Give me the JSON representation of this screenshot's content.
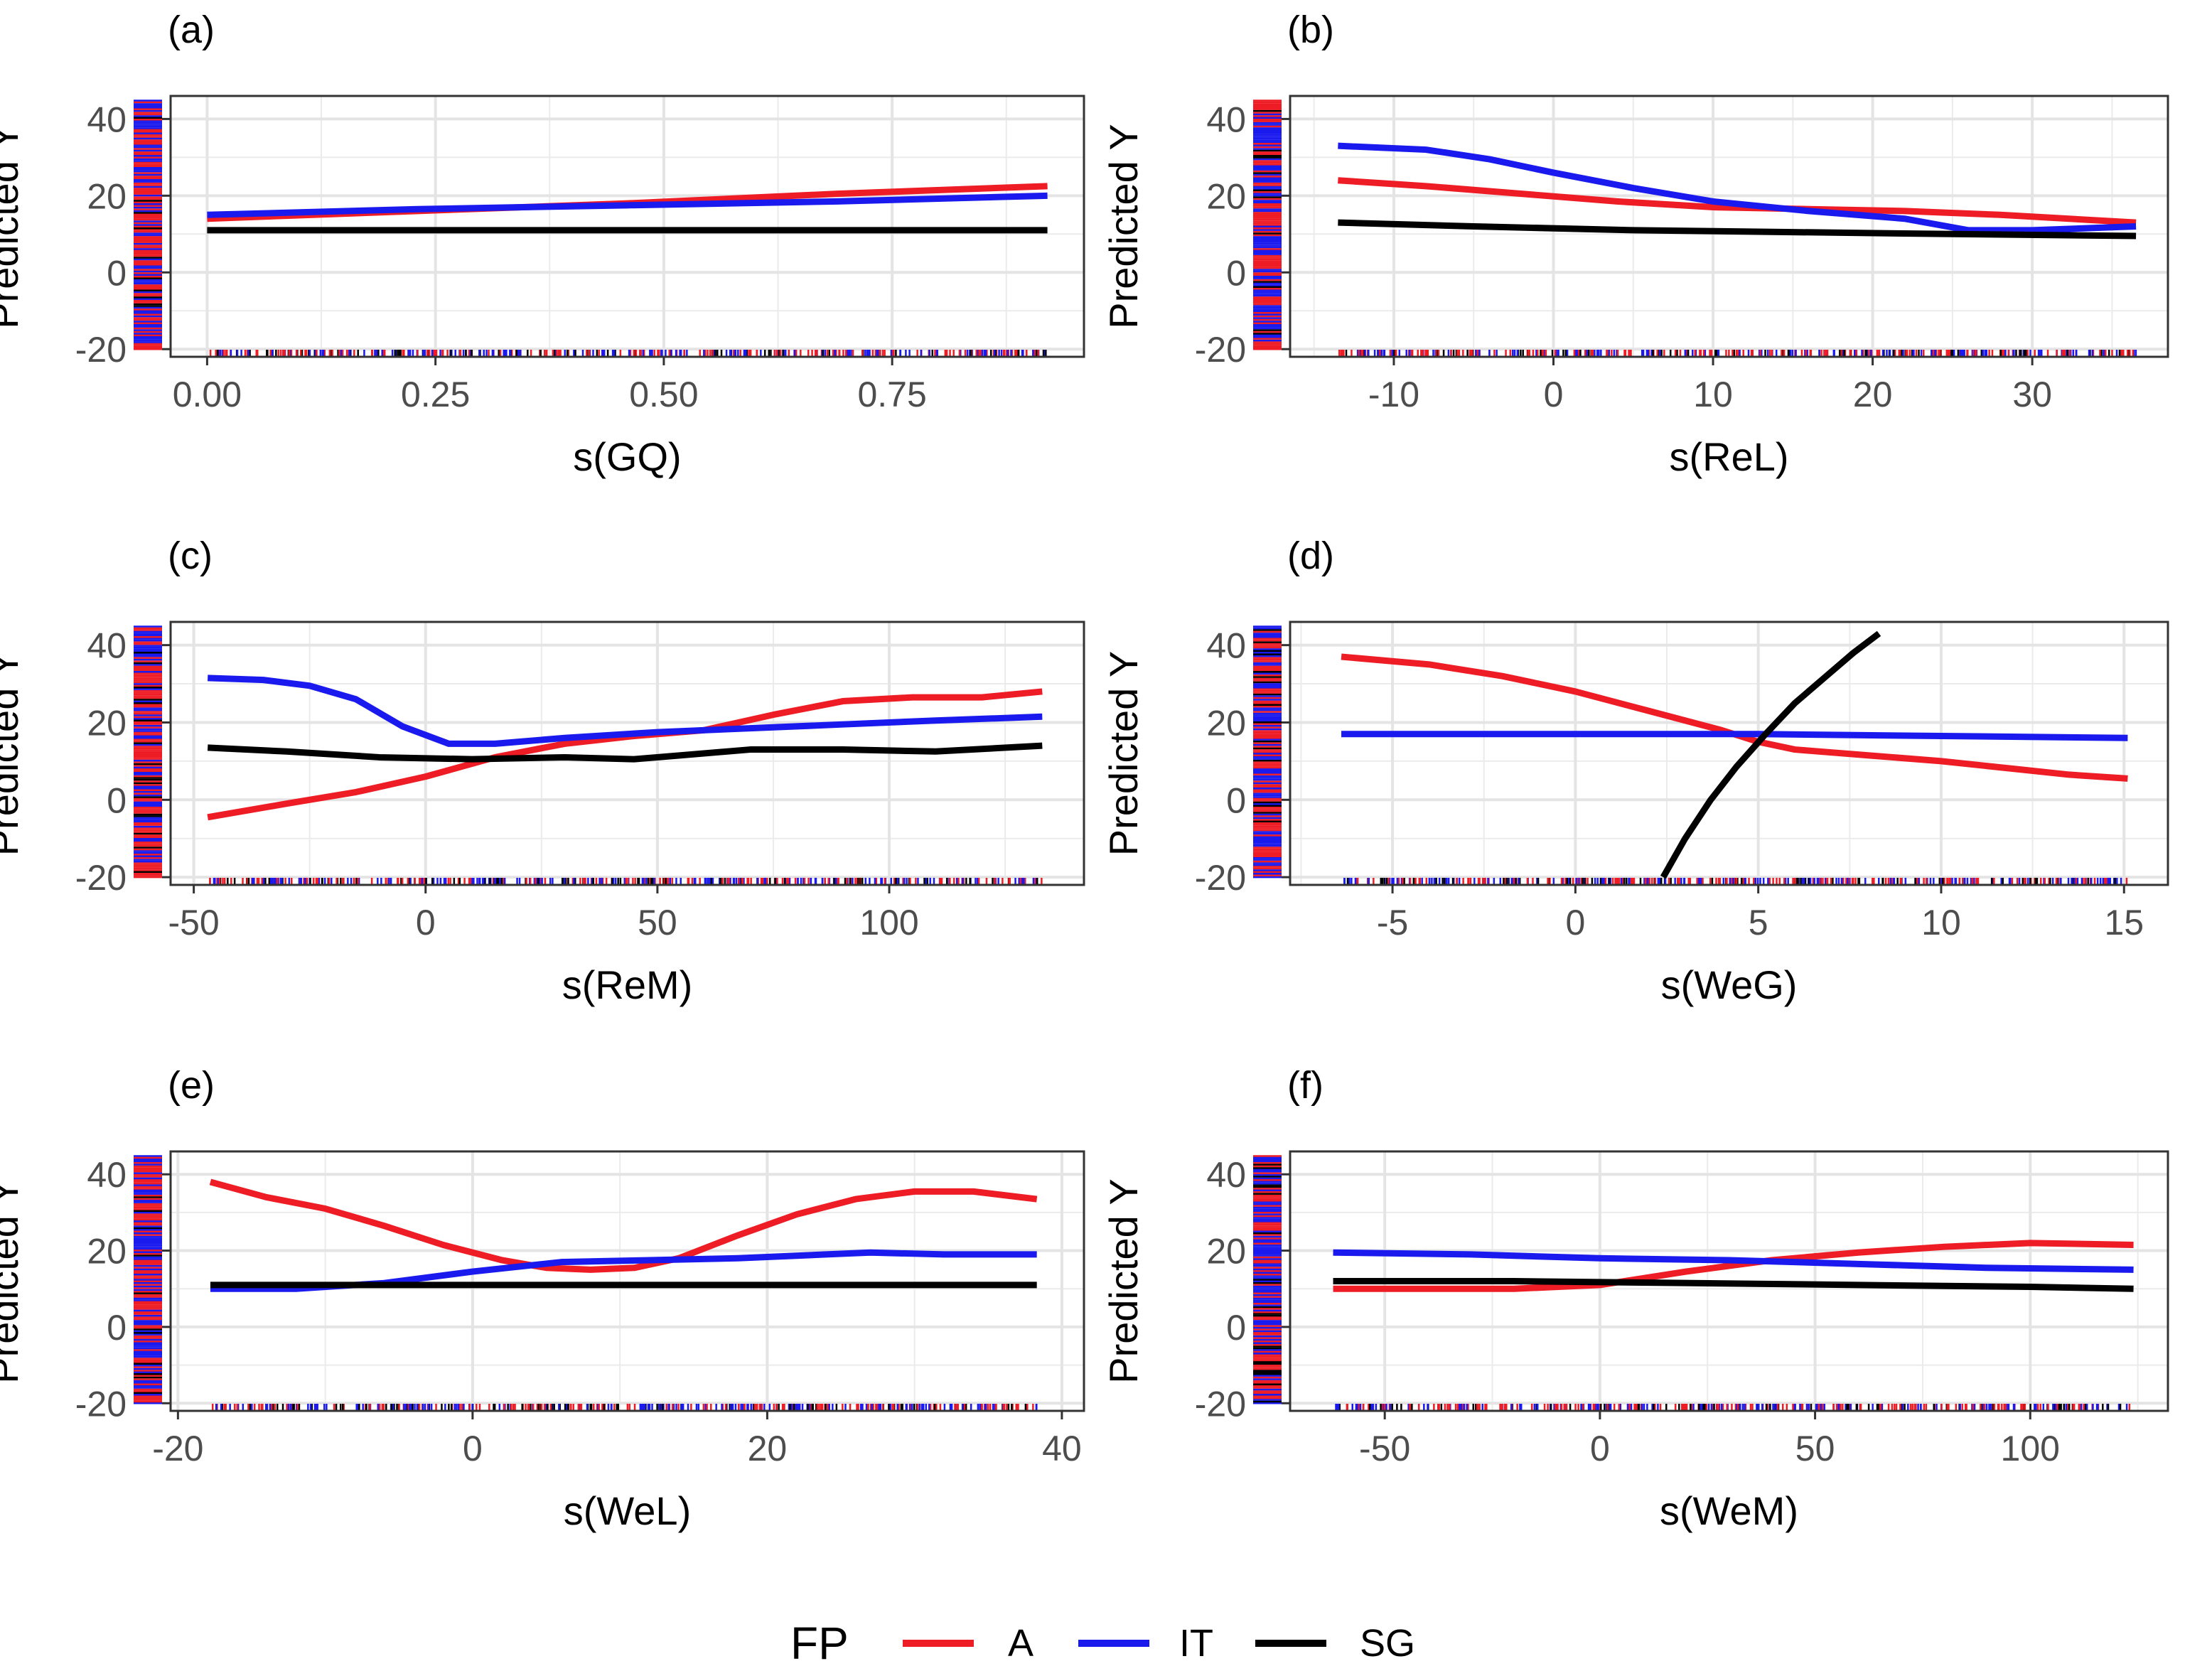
{
  "chart_data": [
    {
      "type": "line",
      "panel_label": "(a)",
      "xlabel": "s(GQ)",
      "ylabel": "Predicted Y",
      "xlim": [
        -0.04,
        0.96
      ],
      "ylim": [
        -22,
        46
      ],
      "xticks": [
        0,
        0.25,
        0.5,
        0.75
      ],
      "xtick_labels": [
        "0.00",
        "0.25",
        "0.50",
        "0.75"
      ],
      "yticks": [
        -20,
        0,
        20,
        40
      ],
      "ytick_labels": [
        "-20",
        "0",
        "20",
        "40"
      ],
      "grid": true,
      "series": [
        {
          "name": "A",
          "x": [
            0,
            0.23,
            0.46,
            0.69,
            0.92
          ],
          "y": [
            14,
            16,
            18,
            20.5,
            22.5
          ]
        },
        {
          "name": "IT",
          "x": [
            0,
            0.23,
            0.46,
            0.69,
            0.92
          ],
          "y": [
            15,
            16.5,
            17.5,
            18.5,
            20
          ]
        },
        {
          "name": "SG",
          "x": [
            0,
            0.23,
            0.46,
            0.69,
            0.92
          ],
          "y": [
            11,
            11,
            11,
            11,
            11
          ]
        }
      ]
    },
    {
      "type": "line",
      "panel_label": "(b)",
      "xlabel": "s(ReL)",
      "ylabel": "Predicted Y",
      "xlim": [
        -16.5,
        38.5
      ],
      "ylim": [
        -22,
        46
      ],
      "xticks": [
        -10,
        0,
        10,
        20,
        30
      ],
      "xtick_labels": [
        "-10",
        "0",
        "10",
        "20",
        "30"
      ],
      "yticks": [
        -20,
        0,
        20,
        40
      ],
      "ytick_labels": [
        "-20",
        "0",
        "20",
        "40"
      ],
      "grid": true,
      "series": [
        {
          "name": "A",
          "x": [
            -13.5,
            -8,
            -2,
            4,
            10,
            16,
            22,
            28,
            36.5
          ],
          "y": [
            24,
            22.5,
            20.5,
            18.5,
            17,
            16.5,
            16,
            15,
            13
          ]
        },
        {
          "name": "IT",
          "x": [
            -13.5,
            -8,
            -4,
            0,
            5,
            10,
            16,
            22,
            26,
            30,
            36.5
          ],
          "y": [
            33,
            32,
            29.5,
            26,
            22,
            18.5,
            16,
            14,
            11,
            11,
            12
          ]
        },
        {
          "name": "SG",
          "x": [
            -13.5,
            -5,
            5,
            15,
            25,
            36.5
          ],
          "y": [
            13,
            12,
            11,
            10.5,
            10,
            9.5
          ]
        }
      ]
    },
    {
      "type": "line",
      "panel_label": "(c)",
      "xlabel": "s(ReM)",
      "ylabel": "Predicted Y",
      "xlim": [
        -55,
        142
      ],
      "ylim": [
        -22,
        46
      ],
      "xticks": [
        -50,
        0,
        50,
        100
      ],
      "xtick_labels": [
        "-50",
        "0",
        "50",
        "100"
      ],
      "yticks": [
        -20,
        0,
        20,
        40
      ],
      "ytick_labels": [
        "-20",
        "0",
        "20",
        "40"
      ],
      "grid": true,
      "series": [
        {
          "name": "A",
          "x": [
            -47,
            -30,
            -15,
            0,
            15,
            30,
            45,
            60,
            75,
            90,
            105,
            120,
            133
          ],
          "y": [
            -4.5,
            -1,
            2,
            6,
            11,
            14.5,
            16.5,
            18,
            22,
            25.5,
            26.5,
            26.5,
            28
          ]
        },
        {
          "name": "IT",
          "x": [
            -47,
            -35,
            -25,
            -15,
            -5,
            5,
            15,
            30,
            50,
            70,
            90,
            110,
            133
          ],
          "y": [
            31.5,
            31,
            29.5,
            26,
            19,
            14.5,
            14.5,
            16,
            17.5,
            18.5,
            19.5,
            20.5,
            21.5
          ]
        },
        {
          "name": "SG",
          "x": [
            -47,
            -30,
            -10,
            10,
            30,
            45,
            55,
            70,
            90,
            110,
            133
          ],
          "y": [
            13.5,
            12.5,
            11,
            10.5,
            11,
            10.5,
            11.5,
            13,
            13,
            12.5,
            14
          ]
        }
      ]
    },
    {
      "type": "line",
      "panel_label": "(d)",
      "xlabel": "s(WeG)",
      "ylabel": "Predicted Y",
      "xlim": [
        -7.8,
        16.2
      ],
      "ylim": [
        -22,
        46
      ],
      "xticks": [
        -5,
        0,
        5,
        10,
        15
      ],
      "xtick_labels": [
        "-5",
        "0",
        "5",
        "10",
        "15"
      ],
      "yticks": [
        -20,
        0,
        20,
        40
      ],
      "ytick_labels": [
        "-20",
        "0",
        "20",
        "40"
      ],
      "grid": true,
      "series": [
        {
          "name": "A",
          "x": [
            -6.4,
            -4,
            -2,
            0,
            2,
            4,
            5,
            6,
            8,
            10,
            12,
            13.5,
            15.1
          ],
          "y": [
            37,
            35,
            32,
            28,
            23,
            18,
            15,
            13,
            11.5,
            10,
            8,
            6.5,
            5.5
          ]
        },
        {
          "name": "IT",
          "x": [
            -6.4,
            0,
            5,
            10,
            15.1
          ],
          "y": [
            17,
            17,
            17,
            16.5,
            16
          ]
        },
        {
          "name": "SG",
          "x": [
            2.4,
            3,
            3.7,
            4.4,
            5.2,
            6,
            6.8,
            7.6,
            8.3
          ],
          "y": [
            -20,
            -10,
            0,
            8.5,
            17,
            25,
            31.5,
            38,
            43
          ]
        }
      ]
    },
    {
      "type": "line",
      "panel_label": "(e)",
      "xlabel": "s(WeL)",
      "ylabel": "Predicted Y",
      "xlim": [
        -20.5,
        41.5
      ],
      "ylim": [
        -22,
        46
      ],
      "xticks": [
        -20,
        0,
        20,
        40
      ],
      "xtick_labels": [
        "-20",
        "0",
        "20",
        "40"
      ],
      "yticks": [
        -20,
        0,
        20,
        40
      ],
      "ytick_labels": [
        "-20",
        "0",
        "20",
        "40"
      ],
      "grid": true,
      "series": [
        {
          "name": "A",
          "x": [
            -17.8,
            -14,
            -10,
            -6,
            -2,
            2,
            5,
            8,
            11,
            14,
            18,
            22,
            26,
            30,
            34,
            38.3
          ],
          "y": [
            38,
            34,
            31,
            26.5,
            21.5,
            17.5,
            15.5,
            15,
            15.5,
            18,
            24,
            29.5,
            33.5,
            35.5,
            35.5,
            33.5
          ]
        },
        {
          "name": "IT",
          "x": [
            -17.8,
            -12,
            -6,
            0,
            6,
            12,
            18,
            24,
            27,
            32,
            38.3
          ],
          "y": [
            10,
            10,
            11.5,
            14.5,
            17,
            17.5,
            18,
            19,
            19.5,
            19,
            19
          ]
        },
        {
          "name": "SG",
          "x": [
            -17.8,
            0,
            20,
            38.3
          ],
          "y": [
            11,
            11,
            11,
            11
          ]
        }
      ]
    },
    {
      "type": "line",
      "panel_label": "(f)",
      "xlabel": "s(WeM)",
      "ylabel": "Predicted Y",
      "xlim": [
        -72,
        132
      ],
      "ylim": [
        -22,
        46
      ],
      "xticks": [
        -50,
        0,
        50,
        100
      ],
      "xtick_labels": [
        "-50",
        "0",
        "50",
        "100"
      ],
      "yticks": [
        -20,
        0,
        20,
        40
      ],
      "ytick_labels": [
        "-20",
        "0",
        "20",
        "40"
      ],
      "grid": true,
      "series": [
        {
          "name": "A",
          "x": [
            -62,
            -40,
            -20,
            0,
            20,
            40,
            60,
            80,
            100,
            124
          ],
          "y": [
            10,
            10,
            10,
            11,
            14.5,
            17.5,
            19.5,
            21,
            22,
            21.5
          ]
        },
        {
          "name": "IT",
          "x": [
            -62,
            -30,
            0,
            30,
            60,
            90,
            124
          ],
          "y": [
            19.5,
            19,
            18,
            17.5,
            16.5,
            15.5,
            15
          ]
        },
        {
          "name": "SG",
          "x": [
            -62,
            -20,
            20,
            60,
            100,
            124
          ],
          "y": [
            12,
            12,
            11.5,
            11,
            10.5,
            10
          ]
        }
      ]
    }
  ],
  "legend": {
    "title": "FP",
    "position": "bottom",
    "entries": [
      {
        "label": "A",
        "color": "#ee1c25"
      },
      {
        "label": "IT",
        "color": "#1a1aee"
      },
      {
        "label": "SG",
        "color": "#000000"
      }
    ]
  },
  "colors": {
    "A": "#ee1c25",
    "IT": "#1a1aee",
    "SG": "#000000",
    "grid": "#ebebeb",
    "axis_text": "#4d4d4d",
    "panel_border": "#333333"
  }
}
